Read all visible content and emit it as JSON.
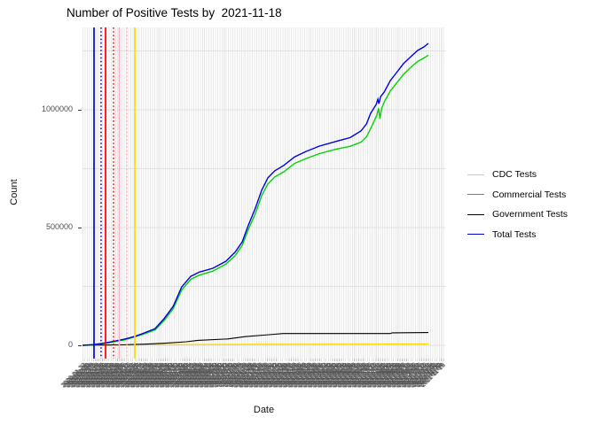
{
  "title": "Number of Positive Tests by  2021-11-18",
  "y_axis": {
    "title": "Count",
    "tick_labels": [
      "0",
      "500000",
      "1000000"
    ],
    "tick_values": [
      0,
      500000,
      1000000
    ],
    "gridline_values": [
      0,
      250000,
      500000,
      750000,
      1000000,
      1250000
    ]
  },
  "x_axis": {
    "title": "Date",
    "first_label": "2020-01-22",
    "last_label": "2021-11-18",
    "label_step_days": 2,
    "label_count": 334,
    "label_angle_deg": 45
  },
  "legend": {
    "items": [
      {
        "label": "CDC Tests",
        "color": "#FFD700"
      },
      {
        "label": "Commercial Tests",
        "color": "#00D400"
      },
      {
        "label": "Government Tests",
        "color": "#000000"
      },
      {
        "label": "Total Tests",
        "color": "#0000E0"
      }
    ]
  },
  "chart_data": {
    "type": "line",
    "title": "Number of Positive Tests by  2021-11-18",
    "xlabel": "Date",
    "ylabel": "Count",
    "x_range": [
      "2020-01-22",
      "2021-11-18"
    ],
    "ylim": [
      0,
      1320000
    ],
    "legend_position": "right",
    "grid": "vertical stripe per date + horizontal major lines every 250000",
    "series": [
      {
        "name": "CDC Tests",
        "color": "#FFD700",
        "points": [
          [
            0.0,
            0
          ],
          [
            0.1,
            2000
          ],
          [
            0.5,
            4000
          ],
          [
            1.0,
            5500
          ]
        ]
      },
      {
        "name": "Government Tests",
        "color": "#000000",
        "points": [
          [
            0.0,
            0
          ],
          [
            0.11,
            2000
          ],
          [
            0.18,
            5000
          ],
          [
            0.24,
            9000
          ],
          [
            0.3,
            15000
          ],
          [
            0.333,
            21000
          ],
          [
            0.42,
            27000
          ],
          [
            0.47,
            37000
          ],
          [
            0.54,
            45000
          ],
          [
            0.58,
            50000
          ],
          [
            0.7,
            50000
          ],
          [
            0.89,
            50000
          ],
          [
            0.895,
            53000
          ],
          [
            1.0,
            54000
          ]
        ]
      },
      {
        "name": "Commercial Tests",
        "color": "#00D400",
        "points": [
          [
            0.0,
            0
          ],
          [
            0.031,
            1000
          ],
          [
            0.069,
            9000
          ],
          [
            0.121,
            23000
          ],
          [
            0.172,
            45000
          ],
          [
            0.21,
            65000
          ],
          [
            0.236,
            105000
          ],
          [
            0.262,
            155000
          ],
          [
            0.287,
            235000
          ],
          [
            0.313,
            280000
          ],
          [
            0.338,
            298000
          ],
          [
            0.377,
            315000
          ],
          [
            0.415,
            345000
          ],
          [
            0.441,
            380000
          ],
          [
            0.462,
            425000
          ],
          [
            0.479,
            490000
          ],
          [
            0.5,
            560000
          ],
          [
            0.518,
            635000
          ],
          [
            0.536,
            685000
          ],
          [
            0.556,
            715000
          ],
          [
            0.582,
            737000
          ],
          [
            0.613,
            772000
          ],
          [
            0.646,
            793000
          ],
          [
            0.685,
            814000
          ],
          [
            0.731,
            832000
          ],
          [
            0.774,
            845000
          ],
          [
            0.805,
            862000
          ],
          [
            0.821,
            885000
          ],
          [
            0.833,
            920000
          ],
          [
            0.851,
            977000
          ],
          [
            0.856,
            1007000
          ],
          [
            0.86,
            962000
          ],
          [
            0.865,
            1007000
          ],
          [
            0.874,
            1038000
          ],
          [
            0.89,
            1080000
          ],
          [
            0.908,
            1113000
          ],
          [
            0.928,
            1150000
          ],
          [
            0.949,
            1180000
          ],
          [
            0.969,
            1205000
          ],
          [
            0.987,
            1220000
          ],
          [
            1.0,
            1232000
          ]
        ]
      },
      {
        "name": "Total Tests",
        "color": "#0000E0",
        "points": [
          [
            0.0,
            0
          ],
          [
            0.031,
            3000
          ],
          [
            0.055,
            8000
          ],
          [
            0.069,
            11000
          ],
          [
            0.09,
            17000
          ],
          [
            0.108,
            22000
          ],
          [
            0.121,
            26000
          ],
          [
            0.151,
            38000
          ],
          [
            0.172,
            49000
          ],
          [
            0.21,
            71000
          ],
          [
            0.236,
            113000
          ],
          [
            0.262,
            165000
          ],
          [
            0.287,
            248000
          ],
          [
            0.313,
            293000
          ],
          [
            0.338,
            311000
          ],
          [
            0.377,
            327000
          ],
          [
            0.415,
            357000
          ],
          [
            0.441,
            395000
          ],
          [
            0.462,
            440000
          ],
          [
            0.479,
            508000
          ],
          [
            0.5,
            583000
          ],
          [
            0.518,
            658000
          ],
          [
            0.536,
            711000
          ],
          [
            0.556,
            741000
          ],
          [
            0.582,
            764000
          ],
          [
            0.613,
            800000
          ],
          [
            0.646,
            823000
          ],
          [
            0.685,
            846000
          ],
          [
            0.731,
            865000
          ],
          [
            0.774,
            882000
          ],
          [
            0.805,
            910000
          ],
          [
            0.821,
            940000
          ],
          [
            0.833,
            985000
          ],
          [
            0.849,
            1022000
          ],
          [
            0.854,
            1045000
          ],
          [
            0.857,
            1026000
          ],
          [
            0.862,
            1056000
          ],
          [
            0.872,
            1075000
          ],
          [
            0.89,
            1124000
          ],
          [
            0.908,
            1158000
          ],
          [
            0.928,
            1196000
          ],
          [
            0.949,
            1225000
          ],
          [
            0.969,
            1252000
          ],
          [
            0.987,
            1267000
          ],
          [
            1.0,
            1282000
          ]
        ]
      }
    ],
    "event_vlines": [
      {
        "color": "#0000E0",
        "style": "solid",
        "x_frac": 0.0333
      },
      {
        "color": "#0000E0",
        "style": "dotted",
        "x_frac": 0.0538
      },
      {
        "color": "#FF0000",
        "style": "solid",
        "x_frac": 0.0667
      },
      {
        "color": "#FF0000",
        "style": "dotted",
        "x_frac": 0.0897
      },
      {
        "color": "#FFB0C4",
        "style": "solid",
        "x_frac": 0.1064
      },
      {
        "color": "#FFB0C4",
        "style": "dotted",
        "x_frac": 0.1282
      },
      {
        "color": "#FFD700",
        "style": "solid",
        "x_frac": 0.1513
      }
    ]
  }
}
